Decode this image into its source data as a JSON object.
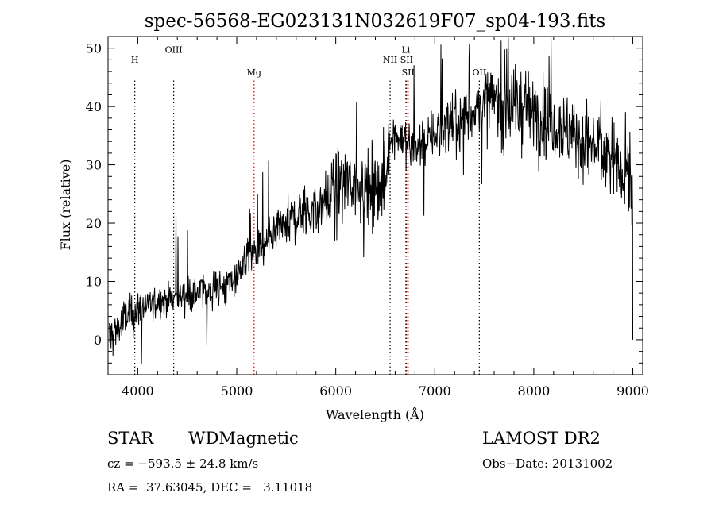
{
  "chart_data": {
    "type": "line",
    "title": "spec-56568-EG023131N032619F07_sp04-193.fits",
    "xlabel": "Wavelength (Å)",
    "ylabel": "Flux (relative)",
    "xlim": [
      3700,
      9100
    ],
    "ylim": [
      -6,
      52
    ],
    "xticks": [
      4000,
      5000,
      6000,
      7000,
      8000,
      9000
    ],
    "yticks": [
      0,
      10,
      20,
      30,
      40,
      50
    ],
    "grid": false,
    "series": [
      {
        "x": [
          3700,
          3800,
          3900,
          4000,
          4100,
          4200,
          4300,
          4400,
          4500,
          4600,
          4700,
          4800,
          4900,
          5000,
          5100,
          5200,
          5300,
          5400,
          5500,
          5600,
          5700,
          5800,
          5900,
          6000,
          6100,
          6200,
          6300,
          6400,
          6500,
          6560,
          6600,
          6700,
          6800,
          6900,
          7000,
          7100,
          7200,
          7300,
          7400,
          7500,
          7600,
          7700,
          7800,
          7900,
          8000,
          8100,
          8200,
          8300,
          8400,
          8500,
          8600,
          8700,
          8800,
          8900,
          9000
        ],
        "y": [
          0,
          2,
          4,
          5,
          6,
          6.5,
          7,
          7.5,
          8,
          8,
          8.5,
          9,
          9,
          11,
          14,
          15,
          16,
          18,
          20,
          21,
          22,
          22,
          24,
          26,
          26.5,
          27,
          26,
          25,
          27,
          36,
          35,
          34,
          33,
          34,
          35,
          37,
          37,
          38,
          39.5,
          40.5,
          41,
          40,
          40,
          40,
          39,
          38,
          37.5,
          36.5,
          35,
          34,
          33,
          32.5,
          31,
          29.5,
          28
        ],
        "noise": [
          2.5,
          2.2,
          2.0,
          1.8,
          1.6,
          1.5,
          1.5,
          1.4,
          1.5,
          1.5,
          1.5,
          1.6,
          1.8,
          1.5,
          1.6,
          1.7,
          1.8,
          2.0,
          2.2,
          2.3,
          2.5,
          2.5,
          2.7,
          2.8,
          3.0,
          3.2,
          3.5,
          3.8,
          3.5,
          2.0,
          2.0,
          2.0,
          2.0,
          2.2,
          2.2,
          2.4,
          2.6,
          2.8,
          2.8,
          3.0,
          3.3,
          3.6,
          3.6,
          3.6,
          3.6,
          3.3,
          3.2,
          3.2,
          3.3,
          3.5,
          3.5,
          3.5,
          3.6,
          3.8,
          4.0
        ]
      }
    ],
    "lines": [
      {
        "label": "H",
        "x": 3970,
        "label_y": 47.5,
        "color": "#000000"
      },
      {
        "label": "OIII",
        "x": 4363,
        "label_y": 49.2,
        "color": "#000000"
      },
      {
        "label": "Mg",
        "x": 5175,
        "label_y": 45.3,
        "color": "#cc0000"
      },
      {
        "label": "NII",
        "x": 6549,
        "label_y": 47.5,
        "color": "#000000"
      },
      {
        "label": "Li",
        "x": 6708,
        "label_y": 49.2,
        "color": "#000000"
      },
      {
        "label": "SII",
        "x": 6716,
        "label_y": 47.5,
        "color": "#cc0000"
      },
      {
        "label": "SII",
        "x": 6731,
        "label_y": 45.3,
        "color": "#cc0000"
      },
      {
        "label": "OII",
        "x": 7450,
        "label_y": 45.3,
        "color": "#000000"
      }
    ]
  },
  "info": {
    "class": "STAR",
    "subclass": "WDMagnetic",
    "survey": "LAMOST DR2",
    "cz": "cz = −593.5 ± 24.8 km/s",
    "obs_date": "Obs−Date: 20131002",
    "coords": "RA =  37.63045, DEC =   3.11018"
  }
}
